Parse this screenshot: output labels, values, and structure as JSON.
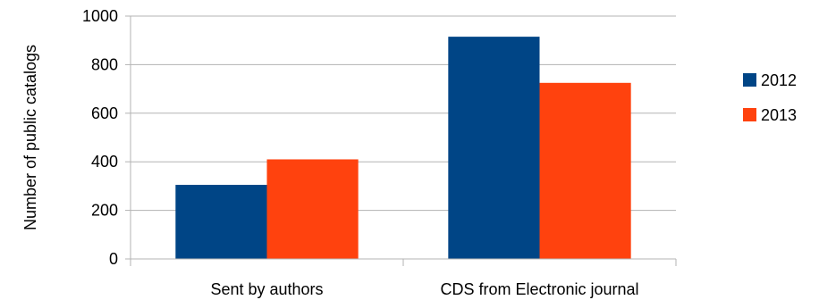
{
  "chart_data": {
    "type": "bar",
    "categories": [
      "Sent by authors",
      "CDS from Electronic journal"
    ],
    "series": [
      {
        "name": "2012",
        "values": [
          305,
          915
        ],
        "color": "#004586"
      },
      {
        "name": "2013",
        "values": [
          410,
          725
        ],
        "color": "#ff420e"
      }
    ],
    "ylabel": "Number of public catalogs",
    "ylim": [
      0,
      1000
    ],
    "yticks": [
      0,
      200,
      400,
      600,
      800,
      1000
    ],
    "grid": "horizontal",
    "legend_position": "right"
  }
}
